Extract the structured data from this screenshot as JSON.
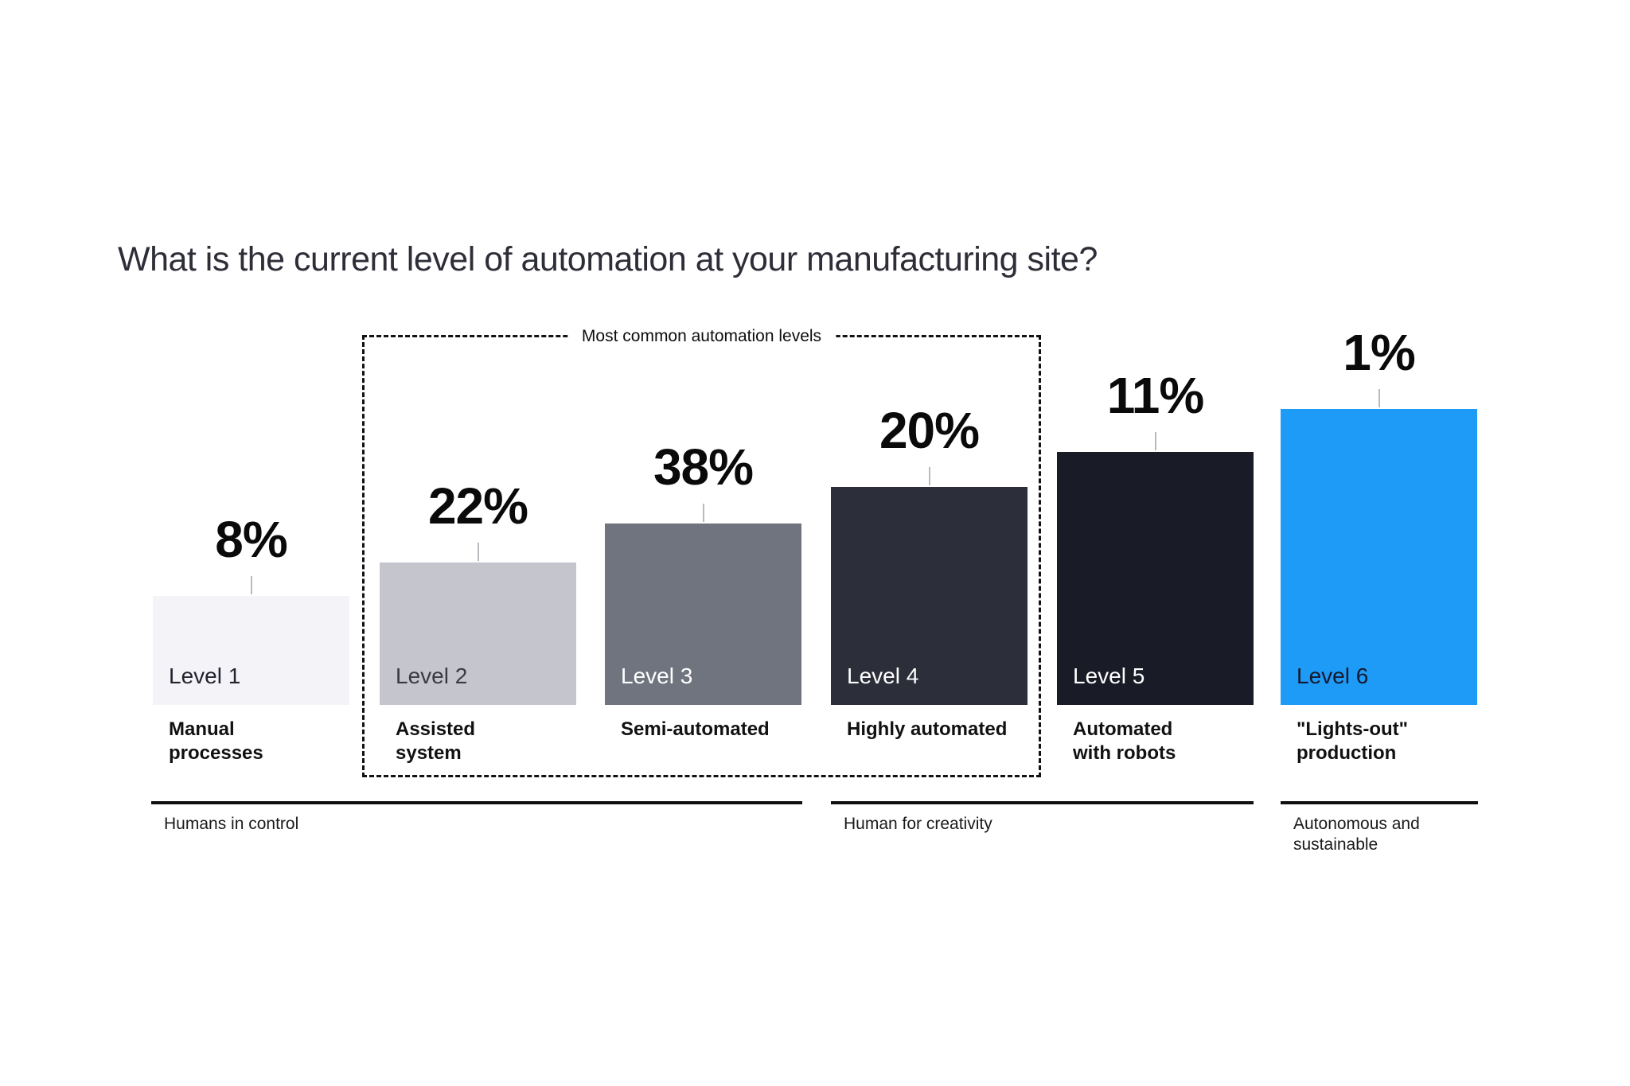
{
  "chart_data": {
    "type": "bar",
    "title": "What is the current level of automation at your manufacturing site?",
    "categories": [
      "Level 1",
      "Level 2",
      "Level 3",
      "Level 4",
      "Level 5",
      "Level 6"
    ],
    "values": [
      8,
      22,
      38,
      20,
      11,
      1
    ],
    "unit": "%",
    "levels": [
      {
        "level_label": "Level 1",
        "value": 8,
        "value_label": "8%",
        "name": "Manual\nprocesses",
        "bar_color": "#f4f4f8",
        "level_label_color": "#23232e"
      },
      {
        "level_label": "Level 2",
        "value": 22,
        "value_label": "22%",
        "name": "Assisted\nsystem",
        "bar_color": "#c5c6cd",
        "level_label_color": "#3a3a44"
      },
      {
        "level_label": "Level 3",
        "value": 38,
        "value_label": "38%",
        "name": "Semi-automated",
        "bar_color": "#70747f",
        "level_label_color": "#ffffff"
      },
      {
        "level_label": "Level 4",
        "value": 20,
        "value_label": "20%",
        "name": "Highly automated",
        "bar_color": "#2c2e39",
        "level_label_color": "#ffffff"
      },
      {
        "level_label": "Level 5",
        "value": 11,
        "value_label": "11%",
        "name": "Automated\nwith robots",
        "bar_color": "#191b27",
        "level_label_color": "#ffffff"
      },
      {
        "level_label": "Level 6",
        "value": 1,
        "value_label": "1%",
        "name": "\"Lights-out\"\nproduction",
        "bar_color": "#1e9bf7",
        "level_label_color": "#16182d"
      }
    ],
    "annotation_box": {
      "label": "Most common automation levels",
      "levels_covered": [
        "Level 2",
        "Level 3",
        "Level 4"
      ]
    },
    "phase_groups": [
      {
        "label": "Humans in control",
        "levels": [
          "Level 1",
          "Level 2",
          "Level 3"
        ]
      },
      {
        "label": "Human for creativity",
        "levels": [
          "Level 4",
          "Level 5"
        ]
      },
      {
        "label": "Autonomous and\nsustainable",
        "levels": [
          "Level 6"
        ]
      }
    ],
    "layout_hints": {
      "bar_heights_represent": "automation level staircase, not percentage",
      "value_labels_position": "above bars with short tick line",
      "baseline": "shared",
      "grid": "off",
      "legend": "none"
    }
  },
  "colors": {
    "background": "#ffffff",
    "title_text": "#2e2e38",
    "value_text": "#0a0a0a",
    "caption_text": "#111111",
    "phase_line": "#101010",
    "tick_line": "#b8bac0",
    "dashed_box_border": "#111111",
    "accent_blue": "#1e9bf7"
  }
}
